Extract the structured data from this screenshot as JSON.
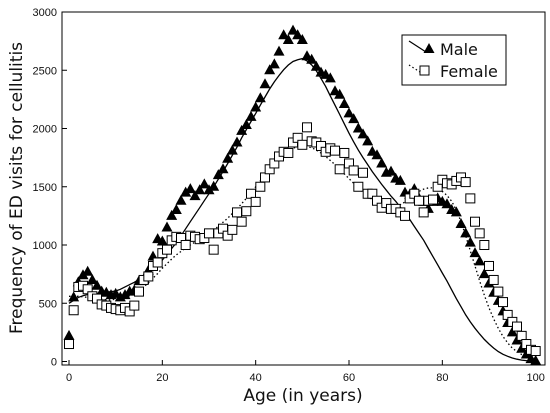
{
  "chart_data": {
    "type": "scatter",
    "xlabel": "Age (in years)",
    "ylabel": "Frequency of ED visits for cellulitis",
    "xlim": [
      -1.5,
      102
    ],
    "ylim": [
      -30,
      3000
    ],
    "xticks": [
      0,
      20,
      40,
      60,
      80,
      100
    ],
    "yticks": [
      0,
      500,
      1000,
      1500,
      2000,
      2500,
      3000
    ],
    "grid": false,
    "legend_position": "top-right",
    "series": [
      {
        "name": "Male",
        "marker": "filled-triangle",
        "line": "solid",
        "color": "#000000",
        "x": [
          0,
          1,
          2,
          3,
          4,
          5,
          6,
          7,
          8,
          9,
          10,
          11,
          12,
          13,
          14,
          15,
          16,
          17,
          18,
          19,
          20,
          21,
          22,
          23,
          24,
          25,
          26,
          27,
          28,
          29,
          30,
          31,
          32,
          33,
          34,
          35,
          36,
          37,
          38,
          39,
          40,
          41,
          42,
          43,
          44,
          45,
          46,
          47,
          48,
          49,
          50,
          51,
          52,
          53,
          54,
          55,
          56,
          57,
          58,
          59,
          60,
          61,
          62,
          63,
          64,
          65,
          66,
          67,
          68,
          69,
          70,
          71,
          72,
          73,
          74,
          75,
          76,
          77,
          78,
          79,
          80,
          81,
          82,
          83,
          84,
          85,
          86,
          87,
          88,
          89,
          90,
          91,
          92,
          93,
          94,
          95,
          96,
          97,
          98,
          99,
          100
        ],
        "y": [
          220,
          550,
          680,
          740,
          770,
          700,
          650,
          600,
          590,
          570,
          580,
          550,
          570,
          600,
          610,
          690,
          700,
          780,
          900,
          1050,
          1030,
          1150,
          1250,
          1300,
          1380,
          1450,
          1480,
          1420,
          1470,
          1520,
          1470,
          1500,
          1600,
          1650,
          1740,
          1810,
          1880,
          1980,
          2030,
          2100,
          2180,
          2260,
          2380,
          2500,
          2550,
          2660,
          2800,
          2760,
          2840,
          2800,
          2760,
          2620,
          2590,
          2530,
          2480,
          2460,
          2430,
          2320,
          2290,
          2210,
          2130,
          2080,
          2000,
          1950,
          1890,
          1800,
          1770,
          1700,
          1620,
          1630,
          1570,
          1550,
          1450,
          1430,
          1480,
          1400,
          1370,
          1310,
          1370,
          1400,
          1370,
          1350,
          1300,
          1280,
          1180,
          1100,
          1020,
          930,
          860,
          750,
          670,
          590,
          520,
          430,
          330,
          250,
          180,
          110,
          60,
          20,
          5
        ],
        "trend_y": [
          500,
          525,
          550,
          565,
          575,
          580,
          585,
          590,
          595,
          600,
          605,
          620,
          640,
          660,
          680,
          705,
          730,
          760,
          790,
          830,
          870,
          920,
          970,
          1020,
          1080,
          1140,
          1200,
          1260,
          1320,
          1380,
          1440,
          1500,
          1565,
          1630,
          1700,
          1770,
          1840,
          1920,
          1990,
          2060,
          2130,
          2200,
          2270,
          2340,
          2400,
          2455,
          2505,
          2545,
          2575,
          2590,
          2600,
          2580,
          2545,
          2495,
          2430,
          2360,
          2280,
          2200,
          2120,
          2040,
          1960,
          1885,
          1815,
          1750,
          1690,
          1630,
          1575,
          1520,
          1470,
          1420,
          1375,
          1325,
          1275,
          1220,
          1160,
          1100,
          1040,
          970,
          900,
          830,
          760,
          690,
          615,
          540,
          470,
          400,
          340,
          285,
          235,
          190,
          150,
          115,
          85,
          62,
          45,
          30,
          20,
          12,
          8,
          5,
          3
        ]
      },
      {
        "name": "Female",
        "marker": "open-square",
        "line": "dotted",
        "color": "#000000",
        "x": [
          0,
          1,
          2,
          3,
          4,
          5,
          6,
          7,
          8,
          9,
          10,
          11,
          12,
          13,
          14,
          15,
          16,
          17,
          18,
          19,
          20,
          21,
          22,
          23,
          24,
          25,
          26,
          27,
          28,
          29,
          30,
          31,
          32,
          33,
          34,
          35,
          36,
          37,
          38,
          39,
          40,
          41,
          42,
          43,
          44,
          45,
          46,
          47,
          48,
          49,
          50,
          51,
          52,
          53,
          54,
          55,
          56,
          57,
          58,
          59,
          60,
          61,
          62,
          63,
          64,
          65,
          66,
          67,
          68,
          69,
          70,
          71,
          72,
          73,
          74,
          75,
          76,
          77,
          78,
          79,
          80,
          81,
          82,
          83,
          84,
          85,
          86,
          87,
          88,
          89,
          90,
          91,
          92,
          93,
          94,
          95,
          96,
          97,
          98,
          99,
          100
        ],
        "y": [
          150,
          440,
          640,
          650,
          620,
          560,
          540,
          490,
          480,
          460,
          450,
          440,
          460,
          430,
          480,
          600,
          700,
          730,
          820,
          850,
          930,
          960,
          1040,
          1070,
          1060,
          1000,
          1080,
          1070,
          1050,
          1060,
          1100,
          960,
          1100,
          1140,
          1080,
          1130,
          1280,
          1200,
          1290,
          1440,
          1370,
          1500,
          1580,
          1650,
          1700,
          1760,
          1800,
          1790,
          1880,
          1920,
          1860,
          2010,
          1890,
          1880,
          1850,
          1800,
          1830,
          1810,
          1650,
          1790,
          1700,
          1640,
          1500,
          1620,
          1440,
          1440,
          1380,
          1320,
          1360,
          1310,
          1310,
          1280,
          1250,
          1400,
          1440,
          1380,
          1280,
          1380,
          1390,
          1500,
          1560,
          1530,
          1520,
          1550,
          1580,
          1540,
          1400,
          1200,
          1100,
          1000,
          820,
          700,
          600,
          510,
          400,
          340,
          300,
          220,
          150,
          100,
          90
        ],
        "trend_y": [
          560,
          560,
          560,
          555,
          550,
          545,
          540,
          535,
          530,
          530,
          535,
          540,
          550,
          565,
          585,
          610,
          640,
          675,
          715,
          755,
          800,
          840,
          880,
          915,
          945,
          975,
          1000,
          1025,
          1050,
          1075,
          1100,
          1130,
          1160,
          1195,
          1230,
          1270,
          1310,
          1355,
          1400,
          1450,
          1500,
          1550,
          1600,
          1650,
          1700,
          1740,
          1780,
          1810,
          1830,
          1845,
          1850,
          1845,
          1835,
          1815,
          1790,
          1760,
          1725,
          1690,
          1650,
          1610,
          1570,
          1530,
          1490,
          1455,
          1420,
          1390,
          1365,
          1345,
          1330,
          1325,
          1330,
          1345,
          1370,
          1400,
          1430,
          1460,
          1480,
          1490,
          1490,
          1480,
          1460,
          1425,
          1375,
          1300,
          1200,
          1080,
          950,
          820,
          690,
          570,
          460,
          365,
          285,
          215,
          160,
          115,
          85,
          60,
          40,
          25,
          15
        ]
      }
    ]
  }
}
